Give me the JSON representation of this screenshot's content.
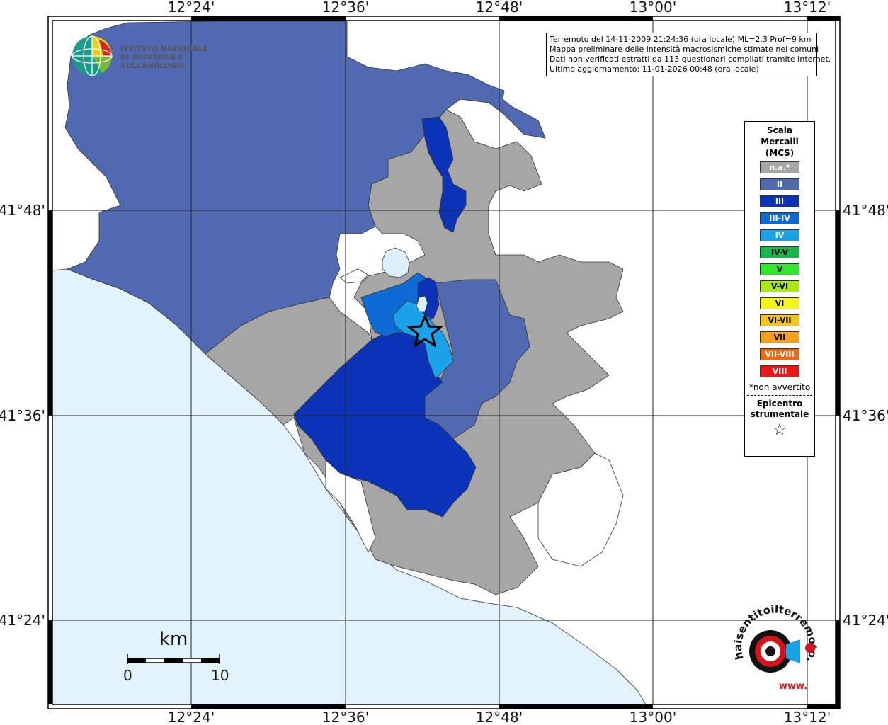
{
  "info": {
    "line1": "Terremoto del 14-11-2009 21:24:36 (ora locale) ML=2.3 Prof=9 km",
    "line2": "Mappa preliminare delle intensità macrosismiche stimate nei comuni",
    "line3": "Dati non verificati estratti da 113 questionari compilati tramite Internet.",
    "line4": "Ultimo aggiornamento: 11-01-2026 00:48 (ora locale)"
  },
  "axes": {
    "lon_ticks": [
      "12°24'",
      "12°36'",
      "12°48'",
      "13°00'",
      "13°12'"
    ],
    "lat_ticks": [
      "41°48'",
      "41°36'",
      "41°24'"
    ]
  },
  "logo": {
    "line1": "ISTITUTO NAZIONALE",
    "line2": "DI GEOFISICA E VULCANOLOGIA"
  },
  "legend": {
    "title1": "Scala",
    "title2": "Mercalli",
    "title3": "(MCS)",
    "items": [
      {
        "label": "n.a.*",
        "color": "#a6a6a6"
      },
      {
        "label": "II",
        "color": "#5069b0"
      },
      {
        "label": "III",
        "color": "#0a33b8"
      },
      {
        "label": "III-IV",
        "color": "#0e6ad4"
      },
      {
        "label": "IV",
        "color": "#1aa3e8"
      },
      {
        "label": "IV-V",
        "color": "#16b84a"
      },
      {
        "label": "V",
        "color": "#2ee82e"
      },
      {
        "label": "V-VI",
        "color": "#a8e81a"
      },
      {
        "label": "VI",
        "color": "#f5f51c"
      },
      {
        "label": "VI-VII",
        "color": "#f5c41c"
      },
      {
        "label": "VII",
        "color": "#f5a01c"
      },
      {
        "label": "VII-VIII",
        "color": "#f06a12"
      },
      {
        "label": "VIII",
        "color": "#e81818"
      }
    ],
    "note": "*non avvertito",
    "epi1": "Epicentro",
    "epi2": "strumentale",
    "star": "☆"
  },
  "scale_bar": {
    "unit": "km",
    "min": "0",
    "max": "10"
  },
  "hsl_logo": {
    "text": "haisentitoilterremoto.it",
    "sub": "www."
  },
  "colors": {
    "sea": "#e2f3fc",
    "na": "#a6a6a6",
    "II": "#5069b0",
    "III": "#0a33b8",
    "III-IV": "#0e6ad4",
    "IV": "#1aa3e8",
    "lake": "#ddf0fb"
  }
}
